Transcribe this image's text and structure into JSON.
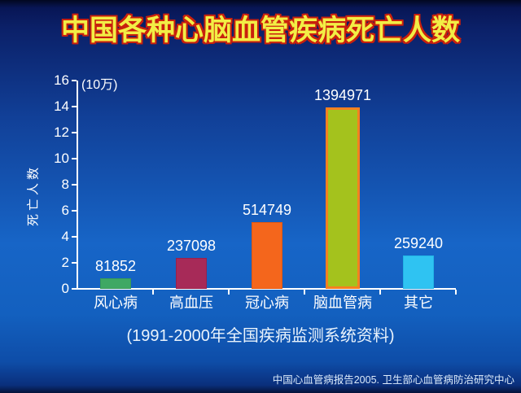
{
  "title": "中国各种心脑血管疾病死亡人数",
  "caption": "(1991-2000年全国疾病监测系统资料)",
  "credit": "中国心血管病报告2005. 卫生部心血管病防治研究中心",
  "colors": {
    "background_top": "#0b2068",
    "background_mid": "#1765c7",
    "background_bottom": "#0a2f7c",
    "title_fill": "#f2ee45",
    "title_outline": "#c9200d",
    "axis": "#ffffff",
    "text": "#ffffff"
  },
  "chart_data": {
    "type": "bar",
    "title": "中国各种心脑血管疾病死亡人数",
    "unit_note": "(10万)",
    "ylabel": "死亡人数",
    "xlabel": "",
    "categories": [
      "风心病",
      "高血压",
      "冠心病",
      "脑血管病",
      "其它"
    ],
    "values": [
      81852,
      237098,
      514749,
      1394971,
      259240
    ],
    "values_in_100k": [
      0.81852,
      2.37098,
      5.14749,
      13.94971,
      2.5924
    ],
    "bar_colors": [
      "#3fa864",
      "#a72a58",
      "#f4661c",
      "#a4c21d",
      "#2fc3f2"
    ],
    "bar_border_colors": [
      "#37995a",
      "#99204c",
      "#e2570f",
      "#f58020",
      "#22b5e6"
    ],
    "ylim": [
      0,
      16
    ],
    "yticks": [
      0,
      2,
      4,
      6,
      8,
      10,
      12,
      14,
      16
    ],
    "grid": false,
    "legend": "none",
    "source_caption": "(1991-2000年全国疾病监测系统资料)"
  }
}
